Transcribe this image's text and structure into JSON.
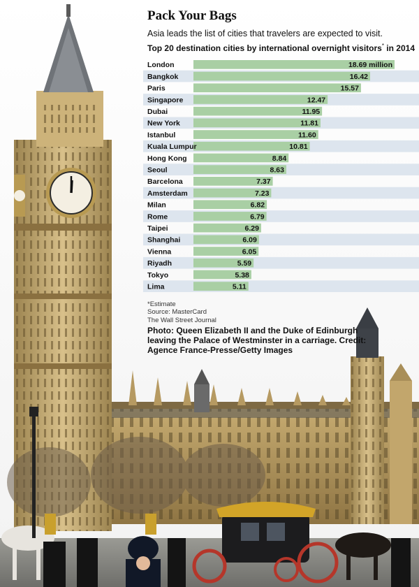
{
  "header": {
    "title": "Pack Your Bags",
    "subtitle": "Asia leads the list of cities that travelers are expected to visit.",
    "chart_heading": "Top 20 destination cities by international overnight visitors",
    "chart_heading_mark": "*",
    "chart_heading_year": " in 2014"
  },
  "chart_data": {
    "type": "bar",
    "orientation": "horizontal",
    "title": "Top 20 destination cities by international overnight visitors* in 2014",
    "categories": [
      "London",
      "Bangkok",
      "Paris",
      "Singapore",
      "Dubai",
      "New York",
      "Istanbul",
      "Kuala Lumpur",
      "Hong Kong",
      "Seoul",
      "Barcelona",
      "Amsterdam",
      "Milan",
      "Rome",
      "Taipei",
      "Shanghai",
      "Vienna",
      "Riyadh",
      "Tokyo",
      "Lima"
    ],
    "values": [
      18.69,
      16.42,
      15.57,
      12.47,
      11.95,
      11.81,
      11.6,
      10.81,
      8.84,
      8.63,
      7.37,
      7.23,
      6.82,
      6.79,
      6.29,
      6.09,
      6.05,
      5.59,
      5.38,
      5.11
    ],
    "value_labels": [
      "18.69 million",
      "16.42",
      "15.57",
      "12.47",
      "11.95",
      "11.81",
      "11.60",
      "10.81",
      "8.84",
      "8.63",
      "7.37",
      "7.23",
      "6.82",
      "6.79",
      "6.29",
      "6.09",
      "6.05",
      "5.59",
      "5.38",
      "5.11"
    ],
    "xlim": [
      0,
      18.69
    ],
    "bar_color": "#a9cfa4",
    "row_band_color": "#dde5ee",
    "grid": false,
    "legend": "none"
  },
  "footer": {
    "estimate": "*Estimate",
    "source": "Source: MasterCard",
    "publisher": "The Wall Street Journal",
    "caption": "Photo: Queen Elizabeth II and the Duke of Edinburgh leaving the Palace of Westminster in a carriage. Credit: Agence France-Presse/Getty Images"
  }
}
